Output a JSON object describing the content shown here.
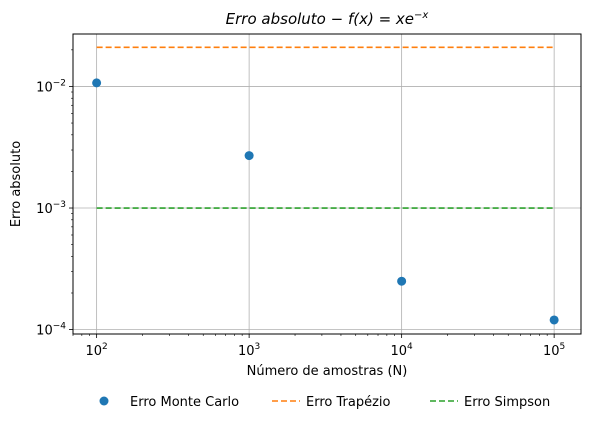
{
  "chart_data": {
    "type": "scatter",
    "title": "Erro absoluto − f(x) = xe^(−x)",
    "title_parts": {
      "main": "Erro absoluto − f(x) = xe",
      "superscript": "−x"
    },
    "xlabel": "Número de amostras (N)",
    "ylabel": "Erro absoluto",
    "xscale": "log",
    "yscale": "log",
    "xlim": [
      70,
      150000
    ],
    "ylim": [
      9.2e-05,
      0.027
    ],
    "grid": true,
    "x_ticks": [
      {
        "base": "10",
        "exp": "2",
        "value": 100
      },
      {
        "base": "10",
        "exp": "3",
        "value": 1000
      },
      {
        "base": "10",
        "exp": "4",
        "value": 10000
      },
      {
        "base": "10",
        "exp": "5",
        "value": 100000
      }
    ],
    "y_ticks": [
      {
        "base": "10",
        "exp": "−2",
        "value": 0.01
      },
      {
        "base": "10",
        "exp": "−3",
        "value": 0.001
      },
      {
        "base": "10",
        "exp": "−4",
        "value": 0.0001
      }
    ],
    "legend_position": "bottom-center",
    "series": [
      {
        "name": "Erro Monte Carlo",
        "kind": "scatter",
        "color": "#1f77b4",
        "x": [
          100,
          1000,
          10000,
          100000
        ],
        "y": [
          0.0107,
          0.0027,
          0.00025,
          0.00012
        ]
      },
      {
        "name": "Erro Trapézio",
        "kind": "dashed-line",
        "color": "#ff7f0e",
        "x": [
          100,
          1000,
          10000,
          100000
        ],
        "y": [
          0.021,
          0.021,
          0.021,
          0.021
        ]
      },
      {
        "name": "Erro Simpson",
        "kind": "dashed-line",
        "color": "#2ca02c",
        "x": [
          100,
          1000,
          10000,
          100000
        ],
        "y": [
          0.001,
          0.001,
          0.001,
          0.001
        ]
      }
    ]
  }
}
